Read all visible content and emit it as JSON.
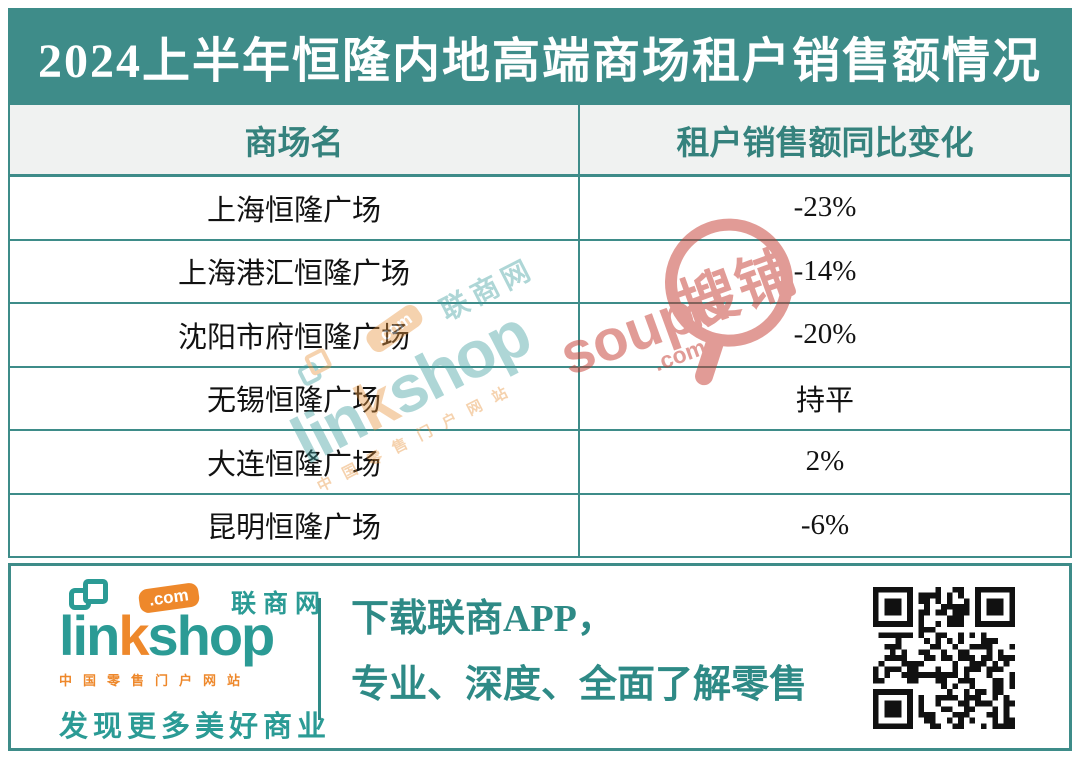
{
  "title": "2024上半年恒隆内地高端商场租户销售额情况",
  "chart_data": {
    "type": "table",
    "title": "2024上半年恒隆内地高端商场租户销售额情况",
    "columns": [
      "商场名",
      "租户销售额同比变化"
    ],
    "rows": [
      [
        "上海恒隆广场",
        "-23%"
      ],
      [
        "上海港汇恒隆广场",
        "-14%"
      ],
      [
        "沈阳市府恒隆广场",
        "-20%"
      ],
      [
        "无锡恒隆广场",
        "持平"
      ],
      [
        "大连恒隆广场",
        "2%"
      ],
      [
        "昆明恒隆广场",
        "-6%"
      ]
    ]
  },
  "table": {
    "col1": "商场名",
    "col2": "租户销售额同比变化",
    "rows": [
      {
        "mall": "上海恒隆广场",
        "change": "-23%"
      },
      {
        "mall": "上海港汇恒隆广场",
        "change": "-14%"
      },
      {
        "mall": "沈阳市府恒隆广场",
        "change": "-20%"
      },
      {
        "mall": "无锡恒隆广场",
        "change": "持平"
      },
      {
        "mall": "大连恒隆广场",
        "change": "2%"
      },
      {
        "mall": "昆明恒隆广场",
        "change": "-6%"
      }
    ]
  },
  "watermark_linkshop": {
    "com": ".com",
    "site": "联商网",
    "brand_lin": "lin",
    "brand_k": "k",
    "brand_shop": "shop",
    "subtitle": "中国零售门户网站"
  },
  "watermark_soupu": {
    "brand": "soupu",
    "com": ".com",
    "site": "搜铺"
  },
  "footer": {
    "logo": {
      "brand_lin": "lin",
      "brand_k": "k",
      "brand_shop": "shop",
      "com": ".com",
      "site": "联商网",
      "subtitle": "中国零售门户网站",
      "slogan": "发现更多美好商业"
    },
    "promo_line1": "下载联商APP，",
    "promo_line2": "专业、深度、全面了解零售"
  },
  "colors": {
    "teal": "#3E8C89",
    "header_bg": "#F0F2F1",
    "header_text": "#35827D",
    "logo_teal": "#2B9B95",
    "orange": "#EE882B",
    "promo_teal": "#2E8A86",
    "soupu_red": "#C53A2F",
    "row_text": "#121212"
  }
}
